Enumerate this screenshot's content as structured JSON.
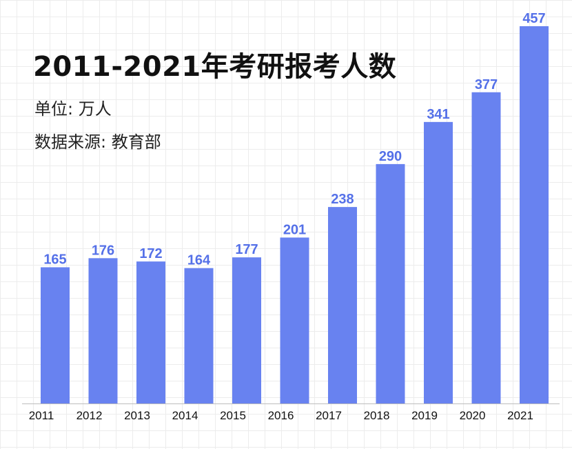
{
  "chart_data": {
    "type": "bar",
    "title": "2011-2021年考研报考人数",
    "unit_label": "单位: 万人",
    "source_label": "数据来源: 教育部",
    "categories": [
      "2011",
      "2012",
      "2013",
      "2014",
      "2015",
      "2016",
      "2017",
      "2018",
      "2019",
      "2020",
      "2021"
    ],
    "values": [
      165,
      176,
      172,
      164,
      177,
      201,
      238,
      290,
      341,
      377,
      457
    ],
    "xlabel": "",
    "ylabel": "",
    "ylim": [
      0,
      457
    ],
    "grid": true,
    "legend": "none",
    "colors": {
      "bar": "#6882f0",
      "value_label": "#5470e8",
      "axis": "#bdbdbd"
    }
  }
}
